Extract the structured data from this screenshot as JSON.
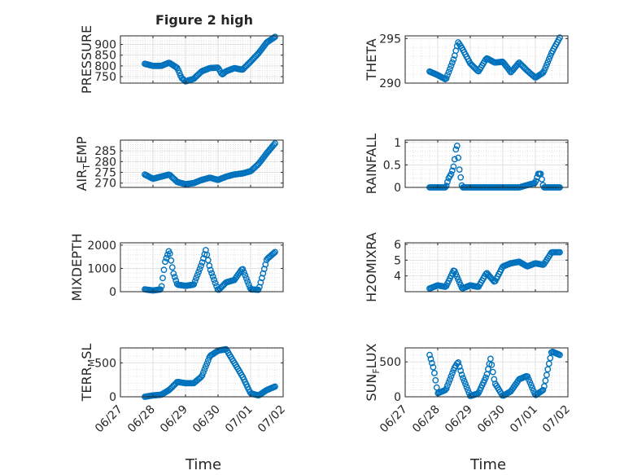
{
  "figure_title": "Figure 2 high",
  "colors": {
    "marker": "#0072BD",
    "axis": "#262626",
    "grid": "#dfdfdf",
    "minor_grid": "#cfcfcf"
  },
  "chart_data": [
    {
      "type": "scatter",
      "ylabel": "PRESSURE",
      "xlim": [
        "06/27",
        "07/02"
      ],
      "ylim": [
        720,
        940
      ],
      "yticks": [
        750,
        800,
        850,
        900
      ],
      "xticks": [
        "06/27",
        "06/28",
        "06/29",
        "06/30",
        "07/01",
        "07/02"
      ],
      "xticklabels": [],
      "grid": true,
      "x": [
        "06/27 18:00",
        "06/28 00:00",
        "06/28 06:00",
        "06/28 12:00",
        "06/28 18:00",
        "06/28 21:00",
        "06/29 00:00",
        "06/29 06:00",
        "06/29 12:00",
        "06/29 18:00",
        "06/30 00:00",
        "06/30 03:00",
        "06/30 06:00",
        "06/30 12:00",
        "06/30 18:00",
        "07/01 00:00",
        "07/01 06:00",
        "07/01 12:00",
        "07/01 18:00"
      ],
      "y": [
        810,
        800,
        800,
        815,
        790,
        745,
        728,
        740,
        775,
        790,
        792,
        760,
        775,
        790,
        782,
        820,
        860,
        910,
        935
      ]
    },
    {
      "type": "scatter",
      "ylabel": "THETA",
      "xlim": [
        "06/27",
        "07/02"
      ],
      "ylim": [
        290,
        295.3
      ],
      "yticks": [
        290,
        295
      ],
      "xticks": [
        "06/27",
        "06/28",
        "06/29",
        "06/30",
        "07/01",
        "07/02"
      ],
      "xticklabels": [],
      "grid": true,
      "x": [
        "06/27 18:00",
        "06/28 00:00",
        "06/28 06:00",
        "06/28 12:00",
        "06/28 15:00",
        "06/28 18:00",
        "06/29 00:00",
        "06/29 06:00",
        "06/29 12:00",
        "06/29 18:00",
        "06/30 00:00",
        "06/30 06:00",
        "06/30 12:00",
        "06/30 18:00",
        "07/01 00:00",
        "07/01 06:00",
        "07/01 12:00",
        "07/01 18:00"
      ],
      "y": [
        291.3,
        290.9,
        290.4,
        292.8,
        294.6,
        293.9,
        292.2,
        291.3,
        292.8,
        292.3,
        292.4,
        291.2,
        292.3,
        291.4,
        290.6,
        291.2,
        293.4,
        295.1
      ]
    },
    {
      "type": "scatter",
      "ylabel": "AIR_TEMP",
      "xlim": [
        "06/27",
        "07/02"
      ],
      "ylim": [
        268,
        290
      ],
      "yticks": [
        270,
        275,
        280,
        285
      ],
      "xticks": [
        "06/27",
        "06/28",
        "06/29",
        "06/30",
        "07/01",
        "07/02"
      ],
      "xticklabels": [],
      "grid": true,
      "x": [
        "06/27 18:00",
        "06/28 00:00",
        "06/28 06:00",
        "06/28 12:00",
        "06/28 18:00",
        "06/29 00:00",
        "06/29 06:00",
        "06/29 12:00",
        "06/29 18:00",
        "06/30 00:00",
        "06/30 06:00",
        "06/30 12:00",
        "06/30 18:00",
        "07/01 00:00",
        "07/01 06:00",
        "07/01 12:00",
        "07/01 18:00"
      ],
      "y": [
        274,
        272,
        273,
        274,
        270.5,
        269.5,
        270,
        271.5,
        272.5,
        271.5,
        273,
        274,
        274.5,
        275.5,
        279,
        284,
        288.5
      ]
    },
    {
      "type": "scatter",
      "ylabel": "RAINFALL",
      "xlim": [
        "06/27",
        "07/02"
      ],
      "ylim": [
        0,
        1.05
      ],
      "yticks": [
        0,
        0.5,
        1
      ],
      "xticks": [
        "06/27",
        "06/28",
        "06/29",
        "06/30",
        "07/01",
        "07/02"
      ],
      "xticklabels": [],
      "grid": true,
      "x": [
        "06/27 18:00",
        "06/28 00:00",
        "06/28 06:00",
        "06/28 08:00",
        "06/28 10:00",
        "06/28 12:00",
        "06/28 14:00",
        "06/28 16:00",
        "06/28 18:00",
        "06/29 00:00",
        "06/29 12:00",
        "06/30 00:00",
        "06/30 12:00",
        "07/01 00:00",
        "07/01 02:00",
        "07/01 04:00",
        "07/01 06:00",
        "07/01 12:00",
        "07/01 18:00"
      ],
      "y": [
        0,
        0,
        0,
        0.2,
        0.3,
        0.5,
        1.0,
        0.4,
        0,
        0,
        0,
        0,
        0,
        0.1,
        0.3,
        0.3,
        0,
        0,
        0
      ]
    },
    {
      "type": "scatter",
      "ylabel": "MIXDEPTH",
      "xlim": [
        "06/27",
        "07/02"
      ],
      "ylim": [
        0,
        2100
      ],
      "yticks": [
        0,
        1000,
        2000
      ],
      "xticks": [
        "06/27",
        "06/28",
        "06/29",
        "06/30",
        "07/01",
        "07/02"
      ],
      "xticklabels": [],
      "grid": true,
      "x": [
        "06/27 18:00",
        "06/28 00:00",
        "06/28 06:00",
        "06/28 09:00",
        "06/28 12:00",
        "06/28 15:00",
        "06/28 18:00",
        "06/29 00:00",
        "06/29 06:00",
        "06/29 12:00",
        "06/29 15:00",
        "06/29 18:00",
        "06/30 00:00",
        "06/30 06:00",
        "06/30 12:00",
        "06/30 18:00",
        "07/01 00:00",
        "07/01 06:00",
        "07/01 12:00",
        "07/01 18:00"
      ],
      "y": [
        100,
        50,
        100,
        1300,
        1800,
        800,
        300,
        250,
        300,
        1200,
        1800,
        1000,
        50,
        400,
        500,
        1000,
        100,
        80,
        1400,
        1700
      ]
    },
    {
      "type": "scatter",
      "ylabel": "H2OMIXRA",
      "xlim": [
        "06/27",
        "07/02"
      ],
      "ylim": [
        3,
        6.1
      ],
      "yticks": [
        4,
        5,
        6
      ],
      "xticks": [
        "06/27",
        "06/28",
        "06/29",
        "06/30",
        "07/01",
        "07/02"
      ],
      "xticklabels": [],
      "grid": true,
      "x": [
        "06/27 18:00",
        "06/28 00:00",
        "06/28 06:00",
        "06/28 12:00",
        "06/28 18:00",
        "06/29 00:00",
        "06/29 06:00",
        "06/29 12:00",
        "06/29 18:00",
        "06/30 00:00",
        "06/30 06:00",
        "06/30 12:00",
        "06/30 18:00",
        "07/01 00:00",
        "07/01 06:00",
        "07/01 12:00",
        "07/01 18:00"
      ],
      "y": [
        3.2,
        3.4,
        3.3,
        4.4,
        3.2,
        3.4,
        3.3,
        4.2,
        3.6,
        4.6,
        4.8,
        4.9,
        4.6,
        4.8,
        4.7,
        5.5,
        5.5
      ]
    },
    {
      "type": "scatter",
      "ylabel": "TERR_MSL",
      "xlim": [
        "06/27",
        "07/02"
      ],
      "ylim": [
        0,
        720
      ],
      "yticks": [
        0,
        500
      ],
      "xticks": [
        "06/27",
        "06/28",
        "06/29",
        "06/30",
        "07/01",
        "07/02"
      ],
      "xticklabels": [
        "06/27",
        "06/28",
        "06/29",
        "06/30",
        "07/01",
        "07/02"
      ],
      "xlabel": "Time",
      "grid": true,
      "x": [
        "06/27 18:00",
        "06/28 00:00",
        "06/28 06:00",
        "06/28 12:00",
        "06/28 18:00",
        "06/29 00:00",
        "06/29 06:00",
        "06/29 12:00",
        "06/29 18:00",
        "06/30 00:00",
        "06/30 06:00",
        "06/30 12:00",
        "06/30 18:00",
        "07/01 00:00",
        "07/01 06:00",
        "07/01 12:00",
        "07/01 18:00"
      ],
      "y": [
        0,
        20,
        30,
        100,
        220,
        200,
        200,
        300,
        600,
        680,
        700,
        500,
        300,
        50,
        20,
        100,
        150
      ]
    },
    {
      "type": "scatter",
      "ylabel": "SUN_FLUX",
      "xlim": [
        "06/27",
        "07/02"
      ],
      "ylim": [
        0,
        700
      ],
      "yticks": [
        0,
        500
      ],
      "xticks": [
        "06/27",
        "06/28",
        "06/29",
        "06/30",
        "07/01",
        "07/02"
      ],
      "xticklabels": [
        "06/27",
        "06/28",
        "06/29",
        "06/30",
        "07/01",
        "07/02"
      ],
      "xlabel": "Time",
      "grid": true,
      "x": [
        "06/27 18:00",
        "06/27 21:00",
        "06/28 00:00",
        "06/28 06:00",
        "06/28 12:00",
        "06/28 15:00",
        "06/28 18:00",
        "06/29 00:00",
        "06/29 06:00",
        "06/29 12:00",
        "06/29 15:00",
        "06/29 18:00",
        "06/30 00:00",
        "06/30 06:00",
        "06/30 12:00",
        "06/30 18:00",
        "07/01 00:00",
        "07/01 06:00",
        "07/01 12:00",
        "07/01 18:00"
      ],
      "y": [
        600,
        400,
        50,
        100,
        400,
        500,
        300,
        10,
        50,
        300,
        550,
        200,
        10,
        80,
        250,
        300,
        20,
        100,
        650,
        600
      ]
    }
  ]
}
